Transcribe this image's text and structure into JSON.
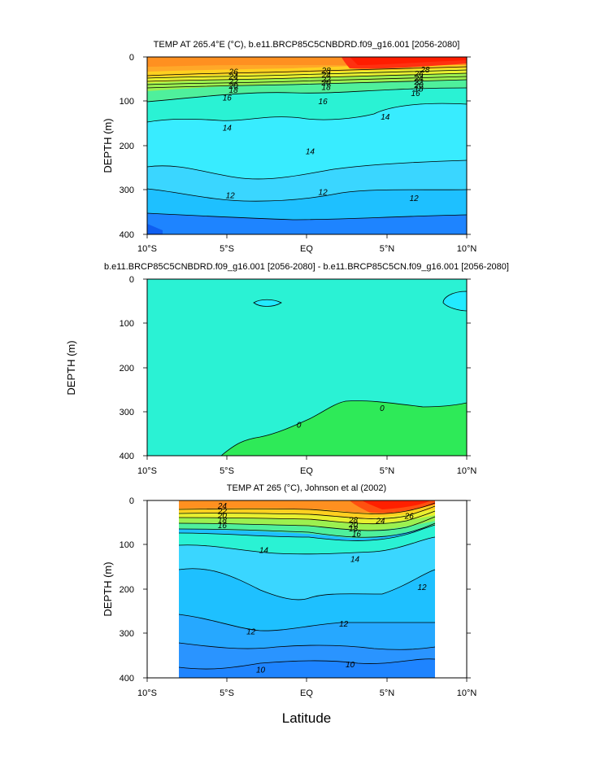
{
  "chart_data": [
    {
      "type": "contour",
      "title": "TEMP AT 265.4°E (°C), b.e11.BRCP85C5CNBDRD.f09_g16.001 [2056-2080]",
      "xlabel": "",
      "ylabel": "DEPTH (m)",
      "xlim": [
        -10,
        10
      ],
      "ylim": [
        400,
        0
      ],
      "x_ticks": [
        "10°S",
        "5°S",
        "EQ",
        "5°N",
        "10°N"
      ],
      "y_ticks": [
        "0",
        "100",
        "200",
        "300",
        "400"
      ],
      "contour_labels": [
        {
          "text": "26",
          "x": -4.6,
          "y": 33
        },
        {
          "text": "24",
          "x": -4.6,
          "y": 44
        },
        {
          "text": "22",
          "x": -4.6,
          "y": 55
        },
        {
          "text": "20",
          "x": -4.6,
          "y": 65
        },
        {
          "text": "18",
          "x": -4.6,
          "y": 74
        },
        {
          "text": "16",
          "x": -5.0,
          "y": 92
        },
        {
          "text": "28",
          "x": 1.2,
          "y": 30
        },
        {
          "text": "24",
          "x": 1.2,
          "y": 40
        },
        {
          "text": "22",
          "x": 1.2,
          "y": 50
        },
        {
          "text": "20",
          "x": 1.2,
          "y": 58
        },
        {
          "text": "18",
          "x": 1.2,
          "y": 68
        },
        {
          "text": "16",
          "x": 1.0,
          "y": 100
        },
        {
          "text": "28",
          "x": 7.4,
          "y": 28
        },
        {
          "text": "26",
          "x": 7.0,
          "y": 38
        },
        {
          "text": "24",
          "x": 7.0,
          "y": 48
        },
        {
          "text": "22",
          "x": 7.0,
          "y": 56
        },
        {
          "text": "20",
          "x": 7.0,
          "y": 63
        },
        {
          "text": "18",
          "x": 7.0,
          "y": 72
        },
        {
          "text": "16",
          "x": 6.8,
          "y": 82
        },
        {
          "text": "14",
          "x": -5.0,
          "y": 160
        },
        {
          "text": "14",
          "x": 0.2,
          "y": 213
        },
        {
          "text": "14",
          "x": 4.9,
          "y": 135
        },
        {
          "text": "12",
          "x": -4.8,
          "y": 312
        },
        {
          "text": "12",
          "x": 1.0,
          "y": 305
        },
        {
          "text": "12",
          "x": 6.7,
          "y": 318
        }
      ]
    },
    {
      "type": "contour",
      "title": "b.e11.BRCP85C5CNBDRD.f09_g16.001 [2056-2080] - b.e11.BRCP85C5CN.f09_g16.001 [2056-2080]",
      "xlabel": "",
      "ylabel": "DEPTH (m)",
      "xlim": [
        -10,
        10
      ],
      "ylim": [
        400,
        0
      ],
      "x_ticks": [
        "10°S",
        "5°S",
        "EQ",
        "5°N",
        "10°N"
      ],
      "y_ticks": [
        "0",
        "100",
        "200",
        "300",
        "400"
      ],
      "contour_labels": [
        {
          "text": "0",
          "x": -0.5,
          "y": 330
        },
        {
          "text": "0",
          "x": 4.7,
          "y": 292
        }
      ]
    },
    {
      "type": "contour",
      "title": "TEMP AT 265 (°C), Johnson et al (2002)",
      "xlabel": "Latitude",
      "ylabel": "DEPTH (m)",
      "xlim": [
        -10,
        10
      ],
      "ylim": [
        400,
        0
      ],
      "x_ticks": [
        "10°S",
        "5°S",
        "EQ",
        "5°N",
        "10°N"
      ],
      "y_ticks": [
        "0",
        "100",
        "200",
        "300",
        "400"
      ],
      "contour_labels": [
        {
          "text": "24",
          "x": -5.3,
          "y": 12
        },
        {
          "text": "22",
          "x": -5.3,
          "y": 24
        },
        {
          "text": "20",
          "x": -5.3,
          "y": 34
        },
        {
          "text": "18",
          "x": -5.3,
          "y": 44
        },
        {
          "text": "16",
          "x": -5.3,
          "y": 56
        },
        {
          "text": "28",
          "x": 2.9,
          "y": 44
        },
        {
          "text": "24",
          "x": 4.6,
          "y": 46
        },
        {
          "text": "20",
          "x": 2.9,
          "y": 54
        },
        {
          "text": "18",
          "x": 2.9,
          "y": 63
        },
        {
          "text": "16",
          "x": 3.1,
          "y": 75
        },
        {
          "text": "26",
          "x": 6.4,
          "y": 35
        },
        {
          "text": "14",
          "x": -2.7,
          "y": 112
        },
        {
          "text": "14",
          "x": 3.0,
          "y": 132
        },
        {
          "text": "12",
          "x": 7.2,
          "y": 195
        },
        {
          "text": "12",
          "x": -3.5,
          "y": 295
        },
        {
          "text": "12",
          "x": 2.3,
          "y": 278
        },
        {
          "text": "10",
          "x": -2.9,
          "y": 382
        },
        {
          "text": "10",
          "x": 2.7,
          "y": 370
        }
      ]
    }
  ]
}
